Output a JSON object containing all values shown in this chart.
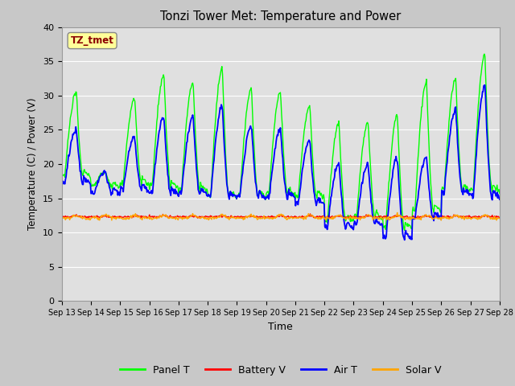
{
  "title": "Tonzi Tower Met: Temperature and Power",
  "xlabel": "Time",
  "ylabel": "Temperature (C) / Power (V)",
  "ylim": [
    0,
    40
  ],
  "yticks": [
    0,
    5,
    10,
    15,
    20,
    25,
    30,
    35,
    40
  ],
  "x_labels": [
    "Sep 13",
    "Sep 14",
    "Sep 15",
    "Sep 16",
    "Sep 17",
    "Sep 18",
    "Sep 19",
    "Sep 20",
    "Sep 21",
    "Sep 22",
    "Sep 23",
    "Sep 24",
    "Sep 25",
    "Sep 26",
    "Sep 27",
    "Sep 28"
  ],
  "annotation_text": "TZ_tmet",
  "annotation_color": "#8B0000",
  "annotation_bg": "#FFFF99",
  "bg_color": "#E0E0E0",
  "grid_color": "#FFFFFF",
  "panel_T_color": "#00FF00",
  "battery_V_color": "#FF0000",
  "air_T_color": "#0000FF",
  "solar_V_color": "#FFA500",
  "legend_labels": [
    "Panel T",
    "Battery V",
    "Air T",
    "Solar V"
  ],
  "figsize": [
    6.4,
    4.8
  ],
  "dpi": 100
}
